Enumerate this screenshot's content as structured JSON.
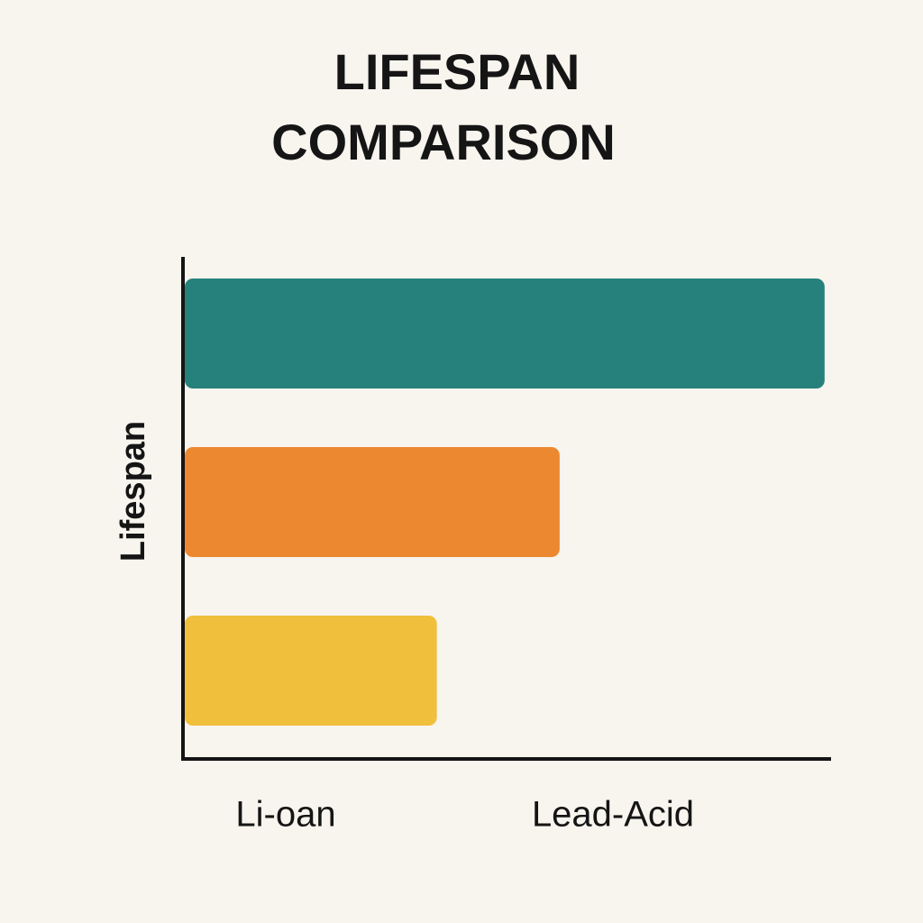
{
  "chart_data": {
    "type": "hbar",
    "title": [
      "LIFESPAN",
      "COMPARISON"
    ],
    "y_label": "Lifespan",
    "annotations": [
      "Li-oan",
      "Lead-Acid"
    ],
    "categories": [
      null,
      null,
      null
    ],
    "values": [
      99,
      58,
      39
    ],
    "colors": [
      "#26807c",
      "#ec8830",
      "#f0bf3c"
    ],
    "xlim": [
      0,
      100
    ],
    "grid": false
  }
}
